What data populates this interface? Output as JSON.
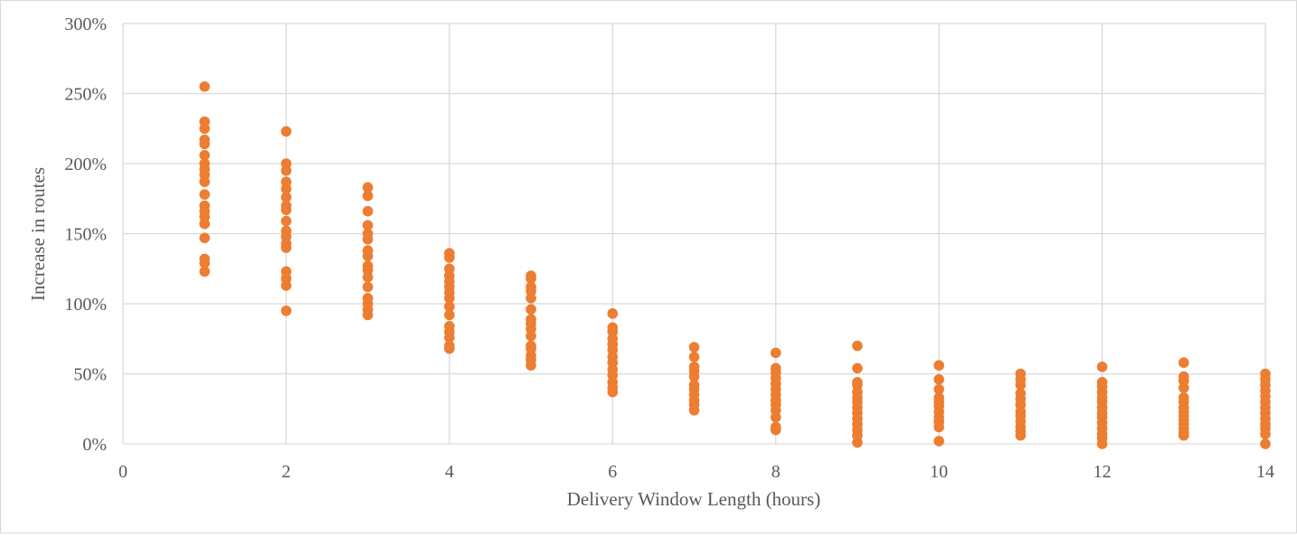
{
  "chart_data": {
    "type": "scatter",
    "title": "",
    "xlabel": "Delivery Window Length (hours)",
    "ylabel": "Increase in routes",
    "xlim": [
      0,
      14
    ],
    "ylim": [
      0,
      300
    ],
    "x_ticks": [
      "0",
      "2",
      "4",
      "6",
      "8",
      "10",
      "12",
      "14"
    ],
    "y_ticks": [
      "0%",
      "50%",
      "100%",
      "150%",
      "200%",
      "250%",
      "300%"
    ],
    "grid": true,
    "legend": "none",
    "marker_color": "#ed7d31",
    "gridline_color": "#d9d9d9",
    "series": [
      {
        "points": [
          [
            1,
            255
          ],
          [
            1,
            230
          ],
          [
            1,
            225
          ],
          [
            1,
            217
          ],
          [
            1,
            214
          ],
          [
            1,
            206
          ],
          [
            1,
            200
          ],
          [
            1,
            196
          ],
          [
            1,
            192
          ],
          [
            1,
            187
          ],
          [
            1,
            178
          ],
          [
            1,
            170
          ],
          [
            1,
            166
          ],
          [
            1,
            162
          ],
          [
            1,
            157
          ],
          [
            1,
            147
          ],
          [
            1,
            132
          ],
          [
            1,
            129
          ],
          [
            1,
            123
          ],
          [
            2,
            223
          ],
          [
            2,
            200
          ],
          [
            2,
            195
          ],
          [
            2,
            187
          ],
          [
            2,
            182
          ],
          [
            2,
            176
          ],
          [
            2,
            170
          ],
          [
            2,
            167
          ],
          [
            2,
            159
          ],
          [
            2,
            152
          ],
          [
            2,
            148
          ],
          [
            2,
            143
          ],
          [
            2,
            140
          ],
          [
            2,
            123
          ],
          [
            2,
            118
          ],
          [
            2,
            113
          ],
          [
            2,
            95
          ],
          [
            3,
            183
          ],
          [
            3,
            177
          ],
          [
            3,
            166
          ],
          [
            3,
            156
          ],
          [
            3,
            150
          ],
          [
            3,
            146
          ],
          [
            3,
            138
          ],
          [
            3,
            134
          ],
          [
            3,
            127
          ],
          [
            3,
            124
          ],
          [
            3,
            119
          ],
          [
            3,
            112
          ],
          [
            3,
            104
          ],
          [
            3,
            100
          ],
          [
            3,
            96
          ],
          [
            3,
            92
          ],
          [
            4,
            136
          ],
          [
            4,
            133
          ],
          [
            4,
            125
          ],
          [
            4,
            120
          ],
          [
            4,
            116
          ],
          [
            4,
            112
          ],
          [
            4,
            108
          ],
          [
            4,
            104
          ],
          [
            4,
            98
          ],
          [
            4,
            92
          ],
          [
            4,
            84
          ],
          [
            4,
            80
          ],
          [
            4,
            76
          ],
          [
            4,
            70
          ],
          [
            4,
            68
          ],
          [
            5,
            120
          ],
          [
            5,
            118
          ],
          [
            5,
            112
          ],
          [
            5,
            109
          ],
          [
            5,
            104
          ],
          [
            5,
            96
          ],
          [
            5,
            89
          ],
          [
            5,
            86
          ],
          [
            5,
            82
          ],
          [
            5,
            77
          ],
          [
            5,
            70
          ],
          [
            5,
            68
          ],
          [
            5,
            63
          ],
          [
            5,
            60
          ],
          [
            5,
            56
          ],
          [
            6,
            93
          ],
          [
            6,
            83
          ],
          [
            6,
            80
          ],
          [
            6,
            75
          ],
          [
            6,
            71
          ],
          [
            6,
            67
          ],
          [
            6,
            62
          ],
          [
            6,
            58
          ],
          [
            6,
            53
          ],
          [
            6,
            49
          ],
          [
            6,
            44
          ],
          [
            6,
            40
          ],
          [
            6,
            37
          ],
          [
            7,
            69
          ],
          [
            7,
            62
          ],
          [
            7,
            55
          ],
          [
            7,
            52
          ],
          [
            7,
            48
          ],
          [
            7,
            42
          ],
          [
            7,
            39
          ],
          [
            7,
            35
          ],
          [
            7,
            31
          ],
          [
            7,
            28
          ],
          [
            7,
            24
          ],
          [
            8,
            65
          ],
          [
            8,
            54
          ],
          [
            8,
            51
          ],
          [
            8,
            47
          ],
          [
            8,
            43
          ],
          [
            8,
            39
          ],
          [
            8,
            35
          ],
          [
            8,
            31
          ],
          [
            8,
            28
          ],
          [
            8,
            24
          ],
          [
            8,
            19
          ],
          [
            8,
            12
          ],
          [
            8,
            10
          ],
          [
            9,
            70
          ],
          [
            9,
            54
          ],
          [
            9,
            44
          ],
          [
            9,
            42
          ],
          [
            9,
            37
          ],
          [
            9,
            33
          ],
          [
            9,
            30
          ],
          [
            9,
            26
          ],
          [
            9,
            22
          ],
          [
            9,
            18
          ],
          [
            9,
            14
          ],
          [
            9,
            10
          ],
          [
            9,
            6
          ],
          [
            9,
            1
          ],
          [
            10,
            56
          ],
          [
            10,
            46
          ],
          [
            10,
            39
          ],
          [
            10,
            33
          ],
          [
            10,
            30
          ],
          [
            10,
            27
          ],
          [
            10,
            23
          ],
          [
            10,
            19
          ],
          [
            10,
            16
          ],
          [
            10,
            12
          ],
          [
            10,
            2
          ],
          [
            11,
            50
          ],
          [
            11,
            46
          ],
          [
            11,
            42
          ],
          [
            11,
            36
          ],
          [
            11,
            32
          ],
          [
            11,
            28
          ],
          [
            11,
            23
          ],
          [
            11,
            20
          ],
          [
            11,
            16
          ],
          [
            11,
            12
          ],
          [
            11,
            9
          ],
          [
            11,
            6
          ],
          [
            12,
            55
          ],
          [
            12,
            44
          ],
          [
            12,
            41
          ],
          [
            12,
            37
          ],
          [
            12,
            33
          ],
          [
            12,
            30
          ],
          [
            12,
            26
          ],
          [
            12,
            22
          ],
          [
            12,
            19
          ],
          [
            12,
            15
          ],
          [
            12,
            11
          ],
          [
            12,
            7
          ],
          [
            12,
            4
          ],
          [
            12,
            0
          ],
          [
            13,
            58
          ],
          [
            13,
            48
          ],
          [
            13,
            45
          ],
          [
            13,
            40
          ],
          [
            13,
            33
          ],
          [
            13,
            30
          ],
          [
            13,
            26
          ],
          [
            13,
            23
          ],
          [
            13,
            20
          ],
          [
            13,
            17
          ],
          [
            13,
            14
          ],
          [
            13,
            11
          ],
          [
            13,
            8
          ],
          [
            13,
            6
          ],
          [
            14,
            50
          ],
          [
            14,
            46
          ],
          [
            14,
            42
          ],
          [
            14,
            38
          ],
          [
            14,
            34
          ],
          [
            14,
            30
          ],
          [
            14,
            26
          ],
          [
            14,
            22
          ],
          [
            14,
            18
          ],
          [
            14,
            14
          ],
          [
            14,
            11
          ],
          [
            14,
            7
          ],
          [
            14,
            0
          ]
        ]
      }
    ]
  }
}
